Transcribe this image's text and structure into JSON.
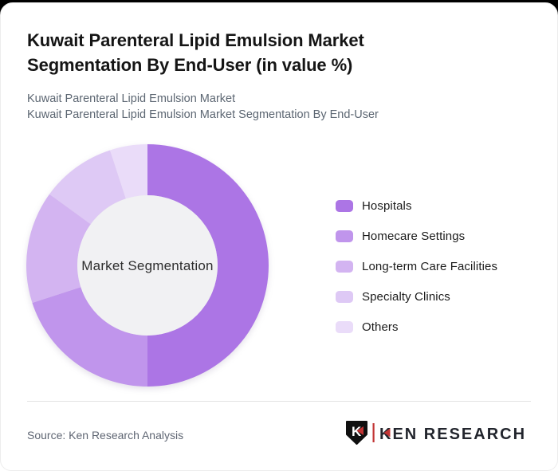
{
  "page": {
    "card_bg": "#ffffff",
    "top_strip_bg": "#000000",
    "card_border": "#ededed"
  },
  "header": {
    "title": "Kuwait Parenteral Lipid Emulsion Market Segmentation By End-User (in value %)",
    "subtitle_line1": "Kuwait Parenteral Lipid Emulsion Market",
    "subtitle_line2": "Kuwait Parenteral Lipid Emulsion Market Segmentation By End-User"
  },
  "chart_data": {
    "type": "pie",
    "variant": "donut",
    "title": "Kuwait Parenteral Lipid Emulsion Market Segmentation By End-User (in value %)",
    "center_label": "Market Segmentation",
    "unit": "value %",
    "categories": [
      "Hospitals",
      "Homecare Settings",
      "Long-term Care Facilities",
      "Specialty Clinics",
      "Others"
    ],
    "values": [
      50,
      20,
      15,
      10,
      5
    ],
    "colors": [
      "#ac75e5",
      "#c095ec",
      "#d3b4f1",
      "#dec9f5",
      "#eadcf9"
    ],
    "start_angle_deg": 0,
    "direction": "clockwise",
    "inner_radius_ratio": 0.58,
    "hole_color": "#f1f1f3",
    "center_label_color": "#2e2e2e",
    "legend_position": "right",
    "legend_text_color": "#1b1b1b"
  },
  "footer": {
    "source": "Source: Ken Research Analysis",
    "logo": {
      "monogram": "K",
      "brand": "KEN RESEARCH",
      "accent_red": "#c23434",
      "shield_color": "#101010",
      "text_color": "#22252d"
    }
  }
}
